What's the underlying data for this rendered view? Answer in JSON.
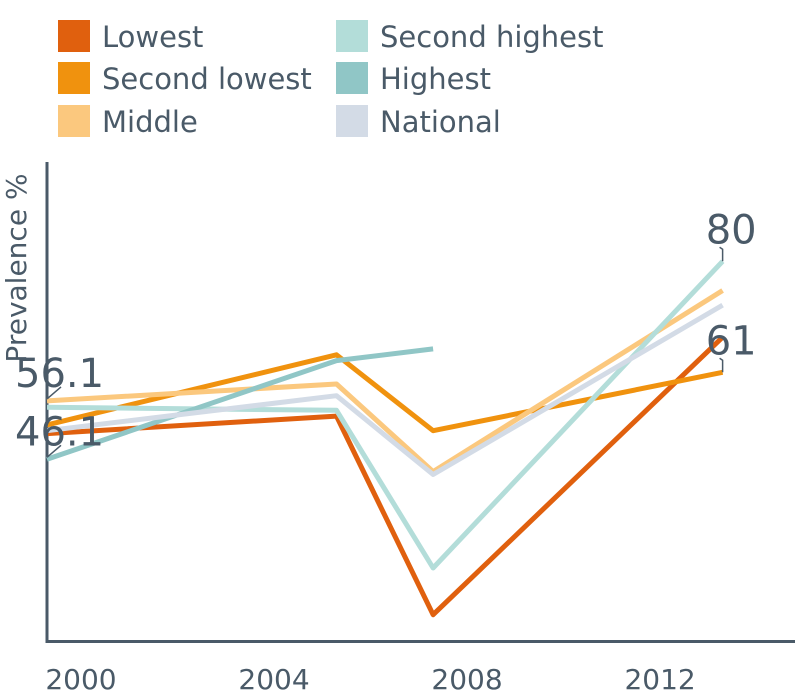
{
  "chart_data": {
    "type": "line",
    "title": "",
    "xlabel": "",
    "ylabel": "Prevalence %",
    "x_ticks": [
      "2000",
      "2004",
      "2008",
      "2012"
    ],
    "xlim": [
      2000,
      2015.5
    ],
    "ylim": [
      15,
      97
    ],
    "grid": false,
    "legend": "top",
    "series": [
      {
        "name": "Lowest",
        "color": "#e0600e",
        "points": [
          [
            2000,
            50.5
          ],
          [
            2006,
            53.5
          ],
          [
            2008,
            19.5
          ],
          [
            2014,
            67
          ]
        ]
      },
      {
        "name": "Second lowest",
        "color": "#f0920e",
        "points": [
          [
            2000,
            52
          ],
          [
            2006,
            64
          ],
          [
            2008,
            51
          ],
          [
            2014,
            61
          ]
        ]
      },
      {
        "name": "Middle",
        "color": "#fbc87e",
        "points": [
          [
            2000,
            56.1
          ],
          [
            2006,
            59
          ],
          [
            2008,
            44
          ],
          [
            2014,
            75
          ]
        ]
      },
      {
        "name": "Second highest",
        "color": "#b3ddd9",
        "points": [
          [
            2000,
            55
          ],
          [
            2006,
            54.5
          ],
          [
            2008,
            27.5
          ],
          [
            2014,
            80
          ]
        ]
      },
      {
        "name": "Highest",
        "color": "#90c6c6",
        "points": [
          [
            2000,
            46.1
          ],
          [
            2006,
            63
          ],
          [
            2008,
            65
          ]
        ]
      },
      {
        "name": "National",
        "color": "#d3dbe6",
        "points": [
          [
            2000,
            51
          ],
          [
            2006,
            57
          ],
          [
            2008,
            43.5
          ],
          [
            2014,
            72.5
          ]
        ]
      }
    ],
    "annotations": [
      {
        "text": "56.1",
        "x": 2000,
        "y": 56.1
      },
      {
        "text": "46.1",
        "x": 2000,
        "y": 46.1
      },
      {
        "text": "80",
        "x": 2014,
        "y": 80
      },
      {
        "text": "61",
        "x": 2014,
        "y": 61
      }
    ]
  }
}
